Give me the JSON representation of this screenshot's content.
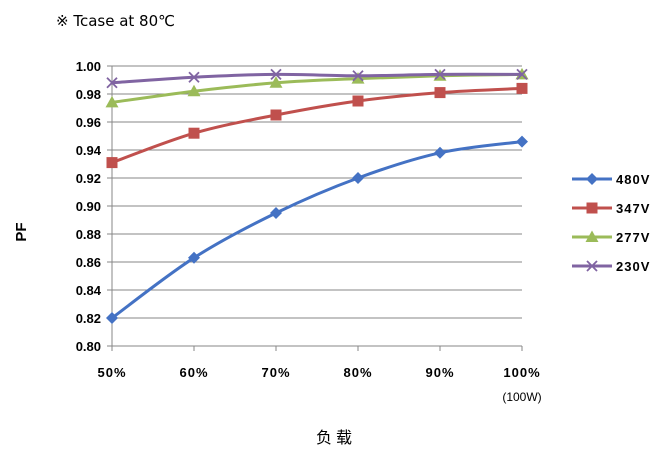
{
  "chart_data": {
    "type": "line",
    "title": "※ Tcase at 80℃",
    "xlabel": "负载",
    "ylabel": "PF",
    "categories": [
      "50%",
      "60%",
      "70%",
      "80%",
      "90%",
      "100%"
    ],
    "category_note": "(100W)",
    "yticks": [
      "0.80",
      "0.82",
      "0.84",
      "0.86",
      "0.88",
      "0.90",
      "0.92",
      "0.94",
      "0.96",
      "0.98",
      "1.00"
    ],
    "ylim": [
      0.8,
      1.0
    ],
    "grid": true,
    "legend_position": "right",
    "series": [
      {
        "name": "480V",
        "color": "#4472C4",
        "marker": "diamond",
        "values": [
          0.82,
          0.863,
          0.895,
          0.92,
          0.938,
          0.946
        ]
      },
      {
        "name": "347V",
        "color": "#C0504D",
        "marker": "square",
        "values": [
          0.931,
          0.952,
          0.965,
          0.975,
          0.981,
          0.984
        ]
      },
      {
        "name": "277V",
        "color": "#9BBB59",
        "marker": "triangle",
        "values": [
          0.974,
          0.982,
          0.988,
          0.991,
          0.993,
          0.994
        ]
      },
      {
        "name": "230V",
        "color": "#8064A2",
        "marker": "x",
        "values": [
          0.988,
          0.992,
          0.994,
          0.993,
          0.994,
          0.994
        ]
      }
    ]
  }
}
